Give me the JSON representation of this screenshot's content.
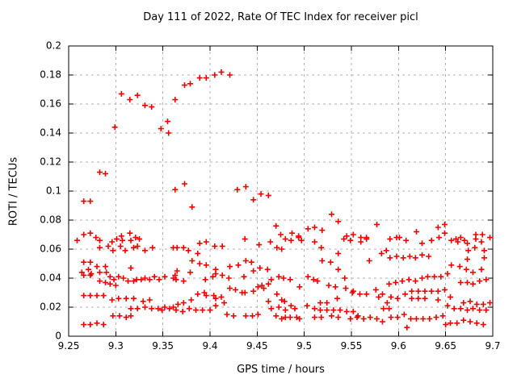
{
  "chart_data": {
    "type": "scatter",
    "title": "Day 111 of 2022, Rate Of TEC Index for receiver picl",
    "xlabel": "GPS time / hours",
    "ylabel": "ROTI / TECUs",
    "xlim": [
      9.25,
      9.7
    ],
    "ylim": [
      0,
      0.2
    ],
    "xticks": [
      9.25,
      9.3,
      9.35,
      9.4,
      9.45,
      9.5,
      9.55,
      9.6,
      9.65,
      9.7
    ],
    "xtick_labels": [
      "9.25",
      "9.3",
      "9.35",
      "9.4",
      "9.45",
      "9.5",
      "9.55",
      "9.6",
      "9.65",
      "9.7"
    ],
    "yticks": [
      0,
      0.02,
      0.04,
      0.06,
      0.08,
      0.1,
      0.12,
      0.14,
      0.16,
      0.18,
      0.2
    ],
    "ytick_labels": [
      "0",
      "0.02",
      "0.04",
      "0.06",
      "0.08",
      "0.1",
      "0.12",
      "0.14",
      "0.16",
      "0.18",
      "0.2"
    ],
    "grid": true,
    "legend_position": "none",
    "marker": "plus",
    "marker_color": "#ee0000",
    "grid_color": "#b0b0b0",
    "border_color": "#000000",
    "background_color": "#ffffff",
    "points": [
      [
        9.306,
        0.167
      ],
      [
        9.315,
        0.163
      ],
      [
        9.323,
        0.166
      ],
      [
        9.331,
        0.159
      ],
      [
        9.338,
        0.158
      ],
      [
        9.363,
        0.163
      ],
      [
        9.299,
        0.144
      ],
      [
        9.348,
        0.143
      ],
      [
        9.355,
        0.148
      ],
      [
        9.356,
        0.14
      ],
      [
        9.373,
        0.173
      ],
      [
        9.379,
        0.174
      ],
      [
        9.389,
        0.178
      ],
      [
        9.396,
        0.178
      ],
      [
        9.405,
        0.18
      ],
      [
        9.412,
        0.182
      ],
      [
        9.421,
        0.18
      ],
      [
        9.283,
        0.113
      ],
      [
        9.289,
        0.112
      ],
      [
        9.266,
        0.093
      ],
      [
        9.273,
        0.093
      ],
      [
        9.373,
        0.105
      ],
      [
        9.363,
        0.101
      ],
      [
        9.381,
        0.089
      ],
      [
        9.429,
        0.101
      ],
      [
        9.438,
        0.103
      ],
      [
        9.446,
        0.094
      ],
      [
        9.454,
        0.098
      ],
      [
        9.462,
        0.097
      ],
      [
        9.47,
        0.076
      ],
      [
        9.529,
        0.084
      ],
      [
        9.536,
        0.079
      ],
      [
        9.577,
        0.077
      ],
      [
        9.504,
        0.074
      ],
      [
        9.511,
        0.075
      ],
      [
        9.519,
        0.073
      ],
      [
        9.642,
        0.075
      ],
      [
        9.649,
        0.077
      ],
      [
        9.649,
        0.071
      ],
      [
        9.619,
        0.072
      ],
      [
        9.266,
        0.07
      ],
      [
        9.273,
        0.071
      ],
      [
        9.306,
        0.069
      ],
      [
        9.315,
        0.071
      ],
      [
        9.321,
        0.068
      ],
      [
        9.279,
        0.068
      ],
      [
        9.475,
        0.07
      ],
      [
        9.487,
        0.071
      ],
      [
        9.494,
        0.069
      ],
      [
        9.545,
        0.069
      ],
      [
        9.552,
        0.07
      ],
      [
        9.56,
        0.068
      ],
      [
        9.566,
        0.068
      ],
      [
        9.601,
        0.068
      ],
      [
        9.666,
        0.068
      ],
      [
        9.682,
        0.07
      ],
      [
        9.689,
        0.07
      ],
      [
        9.259,
        0.066
      ],
      [
        9.283,
        0.066
      ],
      [
        9.296,
        0.065
      ],
      [
        9.301,
        0.067
      ],
      [
        9.307,
        0.066
      ],
      [
        9.316,
        0.066
      ],
      [
        9.325,
        0.067
      ],
      [
        9.389,
        0.064
      ],
      [
        9.396,
        0.065
      ],
      [
        9.405,
        0.062
      ],
      [
        9.413,
        0.062
      ],
      [
        9.437,
        0.067
      ],
      [
        9.452,
        0.063
      ],
      [
        9.464,
        0.065
      ],
      [
        9.471,
        0.061
      ],
      [
        9.48,
        0.067
      ],
      [
        9.486,
        0.066
      ],
      [
        9.494,
        0.068
      ],
      [
        9.497,
        0.066
      ],
      [
        9.511,
        0.065
      ],
      [
        9.542,
        0.067
      ],
      [
        9.549,
        0.066
      ],
      [
        9.56,
        0.065
      ],
      [
        9.566,
        0.067
      ],
      [
        9.591,
        0.067
      ],
      [
        9.598,
        0.068
      ],
      [
        9.608,
        0.066
      ],
      [
        9.625,
        0.064
      ],
      [
        9.635,
        0.066
      ],
      [
        9.643,
        0.068
      ],
      [
        9.656,
        0.066
      ],
      [
        9.661,
        0.067
      ],
      [
        9.663,
        0.065
      ],
      [
        9.67,
        0.066
      ],
      [
        9.673,
        0.064
      ],
      [
        9.682,
        0.067
      ],
      [
        9.688,
        0.065
      ],
      [
        9.697,
        0.068
      ],
      [
        9.283,
        0.061
      ],
      [
        9.292,
        0.062
      ],
      [
        9.297,
        0.059
      ],
      [
        9.305,
        0.062
      ],
      [
        9.31,
        0.059
      ],
      [
        9.319,
        0.061
      ],
      [
        9.323,
        0.062
      ],
      [
        9.331,
        0.059
      ],
      [
        9.339,
        0.061
      ],
      [
        9.361,
        0.061
      ],
      [
        9.365,
        0.061
      ],
      [
        9.372,
        0.061
      ],
      [
        9.377,
        0.059
      ],
      [
        9.476,
        0.06
      ],
      [
        9.518,
        0.061
      ],
      [
        9.587,
        0.059
      ],
      [
        9.674,
        0.059
      ],
      [
        9.681,
        0.061
      ],
      [
        9.691,
        0.059
      ],
      [
        9.387,
        0.057
      ],
      [
        9.536,
        0.057
      ],
      [
        9.582,
        0.057
      ],
      [
        9.591,
        0.054
      ],
      [
        9.598,
        0.055
      ],
      [
        9.605,
        0.054
      ],
      [
        9.612,
        0.055
      ],
      [
        9.618,
        0.054
      ],
      [
        9.625,
        0.056
      ],
      [
        9.632,
        0.055
      ],
      [
        9.673,
        0.053
      ],
      [
        9.691,
        0.054
      ],
      [
        9.381,
        0.052
      ],
      [
        9.438,
        0.052
      ],
      [
        9.444,
        0.051
      ],
      [
        9.519,
        0.052
      ],
      [
        9.528,
        0.051
      ],
      [
        9.569,
        0.052
      ],
      [
        9.266,
        0.051
      ],
      [
        9.273,
        0.051
      ],
      [
        9.28,
        0.048
      ],
      [
        9.289,
        0.048
      ],
      [
        9.316,
        0.047
      ],
      [
        9.389,
        0.05
      ],
      [
        9.396,
        0.049
      ],
      [
        9.406,
        0.046
      ],
      [
        9.421,
        0.048
      ],
      [
        9.43,
        0.049
      ],
      [
        9.453,
        0.047
      ],
      [
        9.461,
        0.046
      ],
      [
        9.536,
        0.046
      ],
      [
        9.656,
        0.049
      ],
      [
        9.665,
        0.048
      ],
      [
        9.672,
        0.046
      ],
      [
        9.679,
        0.044
      ],
      [
        9.688,
        0.046
      ],
      [
        9.264,
        0.044
      ],
      [
        9.271,
        0.046
      ],
      [
        9.274,
        0.043
      ],
      [
        9.266,
        0.042
      ],
      [
        9.273,
        0.042
      ],
      [
        9.283,
        0.044
      ],
      [
        9.29,
        0.044
      ],
      [
        9.294,
        0.041
      ],
      [
        9.303,
        0.041
      ],
      [
        9.365,
        0.045
      ],
      [
        9.379,
        0.044
      ],
      [
        9.406,
        0.043
      ],
      [
        9.413,
        0.042
      ],
      [
        9.446,
        0.045
      ],
      [
        9.403,
        0.041
      ],
      [
        9.436,
        0.041
      ],
      [
        9.473,
        0.041
      ],
      [
        9.504,
        0.041
      ],
      [
        9.543,
        0.04
      ],
      [
        9.631,
        0.041
      ],
      [
        9.638,
        0.041
      ],
      [
        9.645,
        0.041
      ],
      [
        9.652,
        0.043
      ],
      [
        9.363,
        0.042
      ],
      [
        9.352,
        0.041
      ],
      [
        9.341,
        0.041
      ],
      [
        9.298,
        0.039
      ],
      [
        9.283,
        0.038
      ],
      [
        9.289,
        0.037
      ],
      [
        9.294,
        0.036
      ],
      [
        9.308,
        0.04
      ],
      [
        9.313,
        0.038
      ],
      [
        9.319,
        0.038
      ],
      [
        9.322,
        0.039
      ],
      [
        9.327,
        0.039
      ],
      [
        9.331,
        0.04
      ],
      [
        9.336,
        0.039
      ],
      [
        9.346,
        0.039
      ],
      [
        9.361,
        0.04
      ],
      [
        9.364,
        0.039
      ],
      [
        9.372,
        0.038
      ],
      [
        9.395,
        0.039
      ],
      [
        9.42,
        0.04
      ],
      [
        9.465,
        0.039
      ],
      [
        9.478,
        0.04
      ],
      [
        9.485,
        0.039
      ],
      [
        9.51,
        0.039
      ],
      [
        9.514,
        0.038
      ],
      [
        9.59,
        0.036
      ],
      [
        9.597,
        0.037
      ],
      [
        9.604,
        0.038
      ],
      [
        9.611,
        0.039
      ],
      [
        9.618,
        0.038
      ],
      [
        9.625,
        0.04
      ],
      [
        9.666,
        0.037
      ],
      [
        9.673,
        0.037
      ],
      [
        9.679,
        0.036
      ],
      [
        9.686,
        0.038
      ],
      [
        9.693,
        0.039
      ],
      [
        9.3,
        0.035
      ],
      [
        9.455,
        0.035
      ],
      [
        9.462,
        0.036
      ],
      [
        9.451,
        0.034
      ],
      [
        9.457,
        0.033
      ],
      [
        9.421,
        0.033
      ],
      [
        9.427,
        0.032
      ],
      [
        9.495,
        0.034
      ],
      [
        9.526,
        0.035
      ],
      [
        9.533,
        0.034
      ],
      [
        9.544,
        0.033
      ],
      [
        9.576,
        0.032
      ],
      [
        9.434,
        0.03
      ],
      [
        9.437,
        0.03
      ],
      [
        9.446,
        0.031
      ],
      [
        9.387,
        0.029
      ],
      [
        9.394,
        0.03
      ],
      [
        9.551,
        0.03
      ],
      [
        9.552,
        0.031
      ],
      [
        9.559,
        0.029
      ],
      [
        9.566,
        0.029
      ],
      [
        9.583,
        0.029
      ],
      [
        9.607,
        0.029
      ],
      [
        9.614,
        0.031
      ],
      [
        9.621,
        0.031
      ],
      [
        9.628,
        0.031
      ],
      [
        9.635,
        0.031
      ],
      [
        9.642,
        0.031
      ],
      [
        9.649,
        0.032
      ],
      [
        9.471,
        0.029
      ],
      [
        9.266,
        0.028
      ],
      [
        9.273,
        0.028
      ],
      [
        9.28,
        0.028
      ],
      [
        9.287,
        0.028
      ],
      [
        9.296,
        0.025
      ],
      [
        9.303,
        0.026
      ],
      [
        9.311,
        0.026
      ],
      [
        9.319,
        0.026
      ],
      [
        9.329,
        0.024
      ],
      [
        9.336,
        0.025
      ],
      [
        9.396,
        0.028
      ],
      [
        9.404,
        0.028
      ],
      [
        9.406,
        0.026
      ],
      [
        9.412,
        0.027
      ],
      [
        9.415,
        0.023
      ],
      [
        9.366,
        0.022
      ],
      [
        9.372,
        0.023
      ],
      [
        9.38,
        0.025
      ],
      [
        9.462,
        0.024
      ],
      [
        9.476,
        0.025
      ],
      [
        9.479,
        0.024
      ],
      [
        9.517,
        0.023
      ],
      [
        9.524,
        0.023
      ],
      [
        9.535,
        0.026
      ],
      [
        9.579,
        0.027
      ],
      [
        9.588,
        0.023
      ],
      [
        9.592,
        0.027
      ],
      [
        9.599,
        0.026
      ],
      [
        9.614,
        0.026
      ],
      [
        9.621,
        0.026
      ],
      [
        9.628,
        0.026
      ],
      [
        9.642,
        0.025
      ],
      [
        9.655,
        0.027
      ],
      [
        9.669,
        0.023
      ],
      [
        9.676,
        0.024
      ],
      [
        9.683,
        0.022
      ],
      [
        9.69,
        0.022
      ],
      [
        9.697,
        0.023
      ],
      [
        9.316,
        0.019
      ],
      [
        9.323,
        0.019
      ],
      [
        9.331,
        0.02
      ],
      [
        9.338,
        0.019
      ],
      [
        9.345,
        0.019
      ],
      [
        9.349,
        0.018
      ],
      [
        9.352,
        0.02
      ],
      [
        9.357,
        0.019
      ],
      [
        9.361,
        0.02
      ],
      [
        9.364,
        0.018
      ],
      [
        9.371,
        0.017
      ],
      [
        9.378,
        0.019
      ],
      [
        9.385,
        0.018
      ],
      [
        9.392,
        0.018
      ],
      [
        9.4,
        0.018
      ],
      [
        9.406,
        0.021
      ],
      [
        9.465,
        0.019
      ],
      [
        9.473,
        0.02
      ],
      [
        9.48,
        0.018
      ],
      [
        9.486,
        0.021
      ],
      [
        9.49,
        0.019
      ],
      [
        9.503,
        0.021
      ],
      [
        9.511,
        0.019
      ],
      [
        9.517,
        0.018
      ],
      [
        9.524,
        0.018
      ],
      [
        9.531,
        0.018
      ],
      [
        9.538,
        0.018
      ],
      [
        9.545,
        0.017
      ],
      [
        9.552,
        0.017
      ],
      [
        9.584,
        0.019
      ],
      [
        9.59,
        0.019
      ],
      [
        9.652,
        0.021
      ],
      [
        9.659,
        0.019
      ],
      [
        9.666,
        0.019
      ],
      [
        9.673,
        0.018
      ],
      [
        9.679,
        0.019
      ],
      [
        9.686,
        0.018
      ],
      [
        9.693,
        0.018
      ],
      [
        9.418,
        0.015
      ],
      [
        9.425,
        0.014
      ],
      [
        9.438,
        0.014
      ],
      [
        9.445,
        0.014
      ],
      [
        9.451,
        0.015
      ],
      [
        9.47,
        0.014
      ],
      [
        9.476,
        0.012
      ],
      [
        9.48,
        0.013
      ],
      [
        9.485,
        0.013
      ],
      [
        9.492,
        0.013
      ],
      [
        9.495,
        0.012
      ],
      [
        9.511,
        0.013
      ],
      [
        9.518,
        0.013
      ],
      [
        9.529,
        0.014
      ],
      [
        9.536,
        0.013
      ],
      [
        9.549,
        0.012
      ],
      [
        9.556,
        0.013
      ],
      [
        9.563,
        0.012
      ],
      [
        9.57,
        0.013
      ],
      [
        9.577,
        0.012
      ],
      [
        9.592,
        0.013
      ],
      [
        9.599,
        0.013
      ],
      [
        9.606,
        0.015
      ],
      [
        9.613,
        0.012
      ],
      [
        9.619,
        0.012
      ],
      [
        9.626,
        0.012
      ],
      [
        9.633,
        0.012
      ],
      [
        9.64,
        0.013
      ],
      [
        9.647,
        0.014
      ],
      [
        9.557,
        0.014
      ],
      [
        9.297,
        0.014
      ],
      [
        9.304,
        0.014
      ],
      [
        9.311,
        0.013
      ],
      [
        9.316,
        0.014
      ],
      [
        9.583,
        0.01
      ],
      [
        9.65,
        0.008
      ],
      [
        9.655,
        0.009
      ],
      [
        9.662,
        0.009
      ],
      [
        9.669,
        0.011
      ],
      [
        9.676,
        0.01
      ],
      [
        9.683,
        0.009
      ],
      [
        9.69,
        0.008
      ],
      [
        9.609,
        0.006
      ],
      [
        9.266,
        0.008
      ],
      [
        9.273,
        0.008
      ],
      [
        9.28,
        0.009
      ],
      [
        9.287,
        0.008
      ]
    ]
  }
}
